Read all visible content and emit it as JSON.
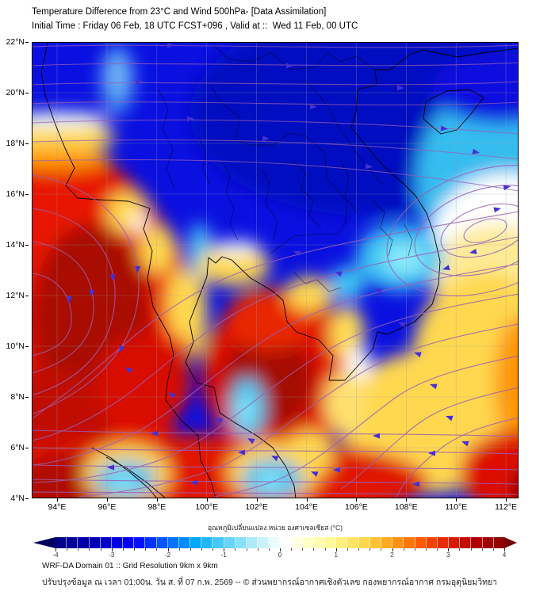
{
  "title": "Temperature Difference from 23°C and Wind 500hPa- [Data Assimilation]",
  "subtitle": "Initial Time : Friday 06 Feb, 18 UTC FCST+096 , Valid at ::  Wed 11 Feb, 00 UTC",
  "map": {
    "lat_ticks": [
      "22°N",
      "20°N",
      "18°N",
      "16°N",
      "14°N",
      "12°N",
      "10°N",
      "8°N",
      "6°N",
      "4°N"
    ],
    "lon_ticks": [
      "94°E",
      "96°E",
      "98°E",
      "100°E",
      "102°E",
      "104°E",
      "106°E",
      "108°E",
      "110°E",
      "112°E"
    ]
  },
  "colorbar": {
    "label": "อุณหภูมิเปลี่ยนแปลง หน่วย องศาเซลเซียส (°C)",
    "ticks": [
      "-4",
      "-3",
      "-2",
      "-1",
      "0",
      "1",
      "2",
      "3",
      "4"
    ],
    "range": [
      -4,
      4
    ],
    "stops": [
      [
        -4.0,
        "#000080"
      ],
      [
        -3.2,
        "#0000c0"
      ],
      [
        -2.6,
        "#0000ff"
      ],
      [
        -2.0,
        "#0066ff"
      ],
      [
        -1.5,
        "#00a8ff"
      ],
      [
        -1.0,
        "#55d0f5"
      ],
      [
        -0.5,
        "#aaeafa"
      ],
      [
        -0.1,
        "#e8fbfd"
      ],
      [
        0.1,
        "#ffffff"
      ],
      [
        0.5,
        "#ffffc8"
      ],
      [
        1.0,
        "#fff68a"
      ],
      [
        1.5,
        "#ffd84a"
      ],
      [
        2.0,
        "#ffa014"
      ],
      [
        2.5,
        "#ff5a00"
      ],
      [
        3.0,
        "#e42000"
      ],
      [
        3.5,
        "#b20000"
      ],
      [
        4.0,
        "#8b0000"
      ]
    ],
    "left_cap_color": "#000060",
    "right_cap_color": "#780000"
  },
  "footer": {
    "line1": "WRF-DA Domain 01 :: Grid Resolution 9km x 9km",
    "line2": "ปรับปรุงข้อมูล ณ เวลา 01:00น. วัน ส. ที่ 07 ก.พ. 2569 -- © ส่วนพยากรณ์อากาศเชิงตัวเลข กองพยากรณ์อากาศ กรมอุตุนิยมวิทยา"
  },
  "colors": {
    "streamline": "#9a5fb5",
    "arrow": "#4630d2",
    "coastline": "#000000",
    "grid": "#9aa0a8",
    "deep_blue_field": "#0a10e0",
    "warm_red_field": "#e01200"
  },
  "chart_data": {
    "type": "heatmap",
    "title": "Temperature Difference from 23°C and Wind 500hPa- [Data Assimilation]",
    "subtitle": "Initial Time : Friday 06 Feb, 18 UTC FCST+096 , Valid at ::  Wed 11 Feb, 00 UTC",
    "x": {
      "label": "Longitude",
      "ticks": [
        "94°E",
        "96°E",
        "98°E",
        "100°E",
        "102°E",
        "104°E",
        "106°E",
        "108°E",
        "110°E",
        "112°E"
      ],
      "range": [
        92.9,
        112.5
      ]
    },
    "y": {
      "label": "Latitude",
      "ticks": [
        "22°N",
        "20°N",
        "18°N",
        "16°N",
        "14°N",
        "12°N",
        "10°N",
        "8°N",
        "6°N",
        "4°N"
      ],
      "range": [
        4,
        22
      ]
    },
    "z": {
      "label": "อุณหภูมิเปลี่ยนแปลง หน่วย องศาเซลเซียส (°C)",
      "units": "°C",
      "range": [
        -4,
        4
      ]
    },
    "overlay": "500 hPa wind streamlines with direction arrows",
    "flow_pattern": {
      "north_of_17N": "zonal westerly flow (arrows pointing east)",
      "central": "northeasterly flow sweeping southwest across Thailand",
      "south_of_6N": "easterly flow (arrows pointing west)",
      "left_red_region": "clockwise (anticyclonic) curvature around warm anomaly near 93-95E, 10-13N",
      "right_eddy": "closed clockwise eddy centered near 110.9E, 14.6N"
    },
    "notable_features": [
      {
        "name": "cold-anomaly-north-thailand-laos",
        "approx_lon": 101.5,
        "approx_lat": 19.0,
        "value_c": -3.5
      },
      {
        "name": "cold-anomaly-vietnam-gulf-of-tonkin",
        "approx_lon": 106.5,
        "approx_lat": 19.5,
        "value_c": -3.5
      },
      {
        "name": "light-blue-patch-northwest",
        "approx_lon": 96.3,
        "approx_lat": 20.6,
        "value_c": -2.0
      },
      {
        "name": "warm-anomaly-andaman-sea",
        "approx_lon": 95.0,
        "approx_lat": 11.0,
        "value_c": 3.8
      },
      {
        "name": "warm-anomaly-gulf-of-thailand",
        "approx_lon": 102.5,
        "approx_lat": 9.5,
        "value_c": 3.6
      },
      {
        "name": "warm-anomaly-southeast-corner",
        "approx_lon": 112.0,
        "approx_lat": 4.5,
        "value_c": 3.5
      },
      {
        "name": "cool-patch-northeast-thailand",
        "approx_lon": 107.5,
        "approx_lat": 13.5,
        "value_c": -1.2
      },
      {
        "name": "cool-patch-south-peninsula",
        "approx_lon": 101.5,
        "approx_lat": 7.5,
        "value_c": -1.0
      },
      {
        "name": "cool-patch-sumatra",
        "approx_lon": 96.6,
        "approx_lat": 4.7,
        "value_c": -1.0
      },
      {
        "name": "cool-patch-bottom-center",
        "approx_lon": 102.5,
        "approx_lat": 4.7,
        "value_c": -1.0
      },
      {
        "name": "mild-warm-eddy-region-east",
        "approx_lon": 111.0,
        "approx_lat": 14.5,
        "value_c": 1.0
      }
    ]
  }
}
